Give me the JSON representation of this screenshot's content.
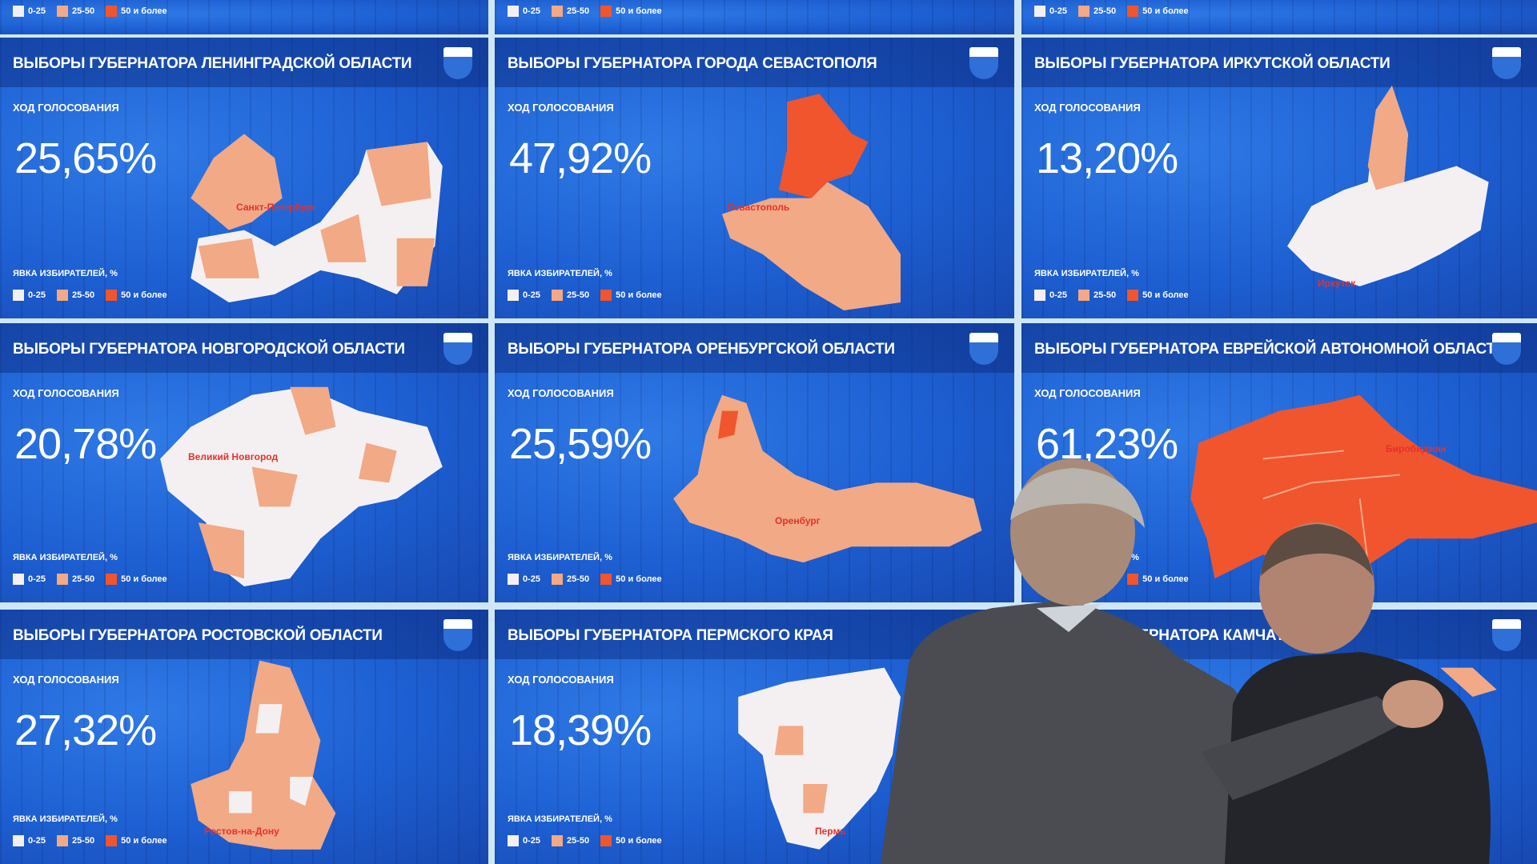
{
  "colors": {
    "low": "#f4f0f2",
    "mid": "#f2a985",
    "high": "#f0552e",
    "screen": "#1d5fd2"
  },
  "legend": {
    "label": "ЯВКА ИЗБИРАТЕЛЕЙ, %",
    "items": [
      "0-25",
      "25-50",
      "50 и более"
    ]
  },
  "top_row": [
    {
      "legend_label": "ЯВКА ИЗБИРАТЕЛЕЙ, %"
    },
    {},
    {}
  ],
  "panels": [
    {
      "title": "ВЫБОРЫ ГУБЕРНАТОРА ЛЕНИНГРАДСКОЙ ОБЛАСТИ",
      "sub": "ХОД ГОЛОСОВАНИЯ",
      "percent": "25,65%",
      "city": "Санкт-Петербург",
      "emblem": "leningrad-emblem"
    },
    {
      "title": "ВЫБОРЫ ГУБЕРНАТОРА ГОРОДА СЕВАСТОПОЛЯ",
      "sub": "ХОД ГОЛОСОВАНИЯ",
      "percent": "47,92%",
      "city": "Севастополь",
      "emblem": "sevastopol-emblem"
    },
    {
      "title": "ВЫБОРЫ ГУБЕРНАТОРА ИРКУТСКОЙ ОБЛАСТИ",
      "sub": "ХОД ГОЛОСОВАНИЯ",
      "percent": "13,20%",
      "city": "Иркутск",
      "emblem": "irkutsk-emblem"
    },
    {
      "title": "ВЫБОРЫ ГУБЕРНАТОРА НОВГОРОДСКОЙ ОБЛАСТИ",
      "sub": "ХОД ГОЛОСОВАНИЯ",
      "percent": "20,78%",
      "city": "Великий Новгород",
      "emblem": "novgorod-emblem"
    },
    {
      "title": "ВЫБОРЫ ГУБЕРНАТОРА ОРЕНБУРГСКОЙ ОБЛАСТИ",
      "sub": "ХОД ГОЛОСОВАНИЯ",
      "percent": "25,59%",
      "city": "Оренбург",
      "emblem": "orenburg-emblem"
    },
    {
      "title": "ВЫБОРЫ ГУБЕРНАТОРА ЕВРЕЙСКОЙ АВТОНОМНОЙ  ОБЛАСТИ",
      "sub": "ХОД ГОЛОСОВАНИЯ",
      "percent": "61,23%",
      "city": "Биробиджан",
      "emblem": "jewish-ao-emblem"
    },
    {
      "title": "ВЫБОРЫ ГУБЕРНАТОРА РОСТОВСКОЙ ОБЛАСТИ",
      "sub": "ХОД ГОЛОСОВАНИЯ",
      "percent": "27,32%",
      "city": "Ростов-на-Дону",
      "emblem": "rostov-emblem"
    },
    {
      "title": "ВЫБОРЫ ГУБЕРНАТОРА ПЕРМСКОГО КРАЯ",
      "sub": "ХОД ГОЛОСОВАНИЯ",
      "percent": "18,39%",
      "city": "Пермь",
      "emblem": "perm-emblem"
    },
    {
      "title": "ВЫБОРЫ ГУБЕРНАТОРА КАМЧАТС",
      "sub": "",
      "percent": "",
      "city": "",
      "emblem": "kamchatka-emblem"
    }
  ]
}
